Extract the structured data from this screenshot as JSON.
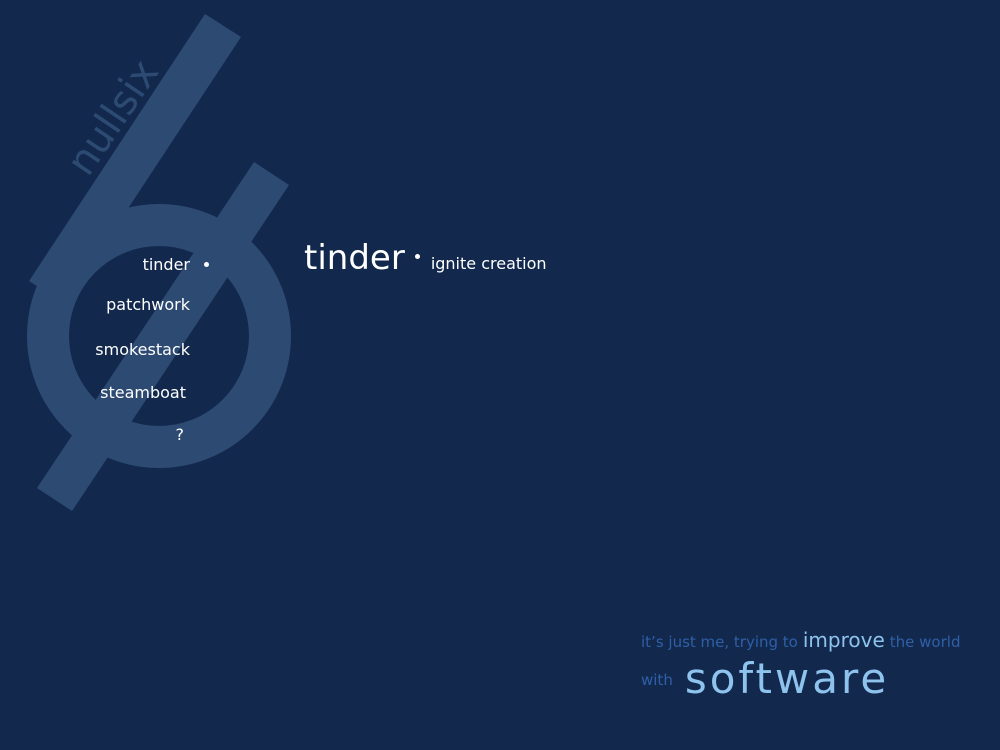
{
  "brand": {
    "name": "nullsix",
    "logo_icon": "stylized-six-slashed-zero-icon"
  },
  "nav": {
    "items": [
      {
        "label": "tinder",
        "active": true
      },
      {
        "label": "patchwork",
        "active": false
      },
      {
        "label": "smokestack",
        "active": false
      },
      {
        "label": "steamboat",
        "active": false
      },
      {
        "label": "?",
        "active": false
      }
    ]
  },
  "headline": {
    "title": "tinder",
    "tagline": "ignite creation"
  },
  "motto": {
    "part1": "it’s just me, trying to",
    "emph1": "improve",
    "part2": "the world",
    "part3": "with",
    "emph2": "software"
  },
  "colors": {
    "background": "#12294d",
    "logo": "#2d4a72",
    "text": "#ffffff",
    "motto_dim": "#2f5fa8",
    "motto_bright": "#8ec3ee"
  }
}
